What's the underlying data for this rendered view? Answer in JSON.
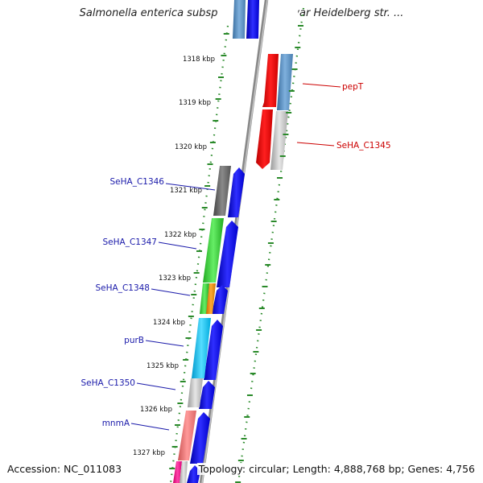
{
  "title": "Salmonella enterica subsp. enterica serovar Heidelberg str. ...",
  "footer": {
    "accession": "Accession: NC_011083",
    "summary": "Topology: circular; Length: 4,888,768 bp; Genes: 4,756"
  },
  "ticks": [
    "1318 kbp",
    "1319 kbp",
    "1320 kbp",
    "1321 kbp",
    "1322 kbp",
    "1323 kbp",
    "1324 kbp",
    "1325 kbp",
    "1326 kbp",
    "1327 kbp"
  ],
  "colors": {
    "left_label": "#1a1aaa",
    "right_label": "#cc0000",
    "cds_forward": "#0000ee",
    "cds_reverse": "#ee0000",
    "backbone": "#888888",
    "dots": "#2a8a2a"
  },
  "genes_left": [
    {
      "label": "SeHA_C1346"
    },
    {
      "label": "SeHA_C1347"
    },
    {
      "label": "SeHA_C1348"
    },
    {
      "label": "purB"
    },
    {
      "label": "SeHA_C1350"
    },
    {
      "label": "mnmA"
    }
  ],
  "genes_right": [
    {
      "label": "pepT"
    },
    {
      "label": "SeHA_C1345"
    }
  ]
}
